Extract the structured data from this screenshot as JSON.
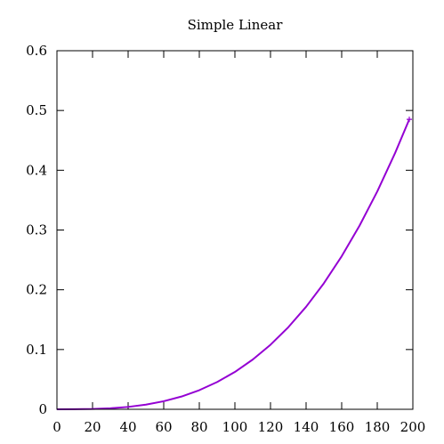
{
  "chart_data": {
    "type": "line",
    "title": "Simple Linear",
    "xlabel": "",
    "ylabel": "",
    "xlim": [
      0,
      200
    ],
    "ylim": [
      0,
      0.6
    ],
    "x_ticks": [
      0,
      20,
      40,
      60,
      80,
      100,
      120,
      140,
      160,
      180,
      200
    ],
    "y_ticks": [
      0,
      0.1,
      0.2,
      0.3,
      0.4,
      0.5,
      0.6
    ],
    "x_tick_labels": [
      "0",
      "20",
      "40",
      "60",
      "80",
      "100",
      "120",
      "140",
      "160",
      "180",
      "200"
    ],
    "y_tick_labels": [
      "0",
      "0.1",
      "0.2",
      "0.3",
      "0.4",
      "0.5",
      "0.6"
    ],
    "grid": false,
    "legend": "none",
    "series": [
      {
        "color": "#9400d3",
        "x": [
          0,
          10,
          20,
          30,
          40,
          50,
          60,
          70,
          80,
          90,
          100,
          110,
          120,
          130,
          140,
          150,
          160,
          170,
          180,
          190,
          198
        ],
        "y": [
          0,
          0.0001,
          0.0005,
          0.0017,
          0.004,
          0.0078,
          0.0135,
          0.0214,
          0.032,
          0.0456,
          0.0625,
          0.0832,
          0.108,
          0.1373,
          0.1715,
          0.2109,
          0.256,
          0.3071,
          0.3645,
          0.4287,
          0.4852
        ]
      }
    ]
  }
}
